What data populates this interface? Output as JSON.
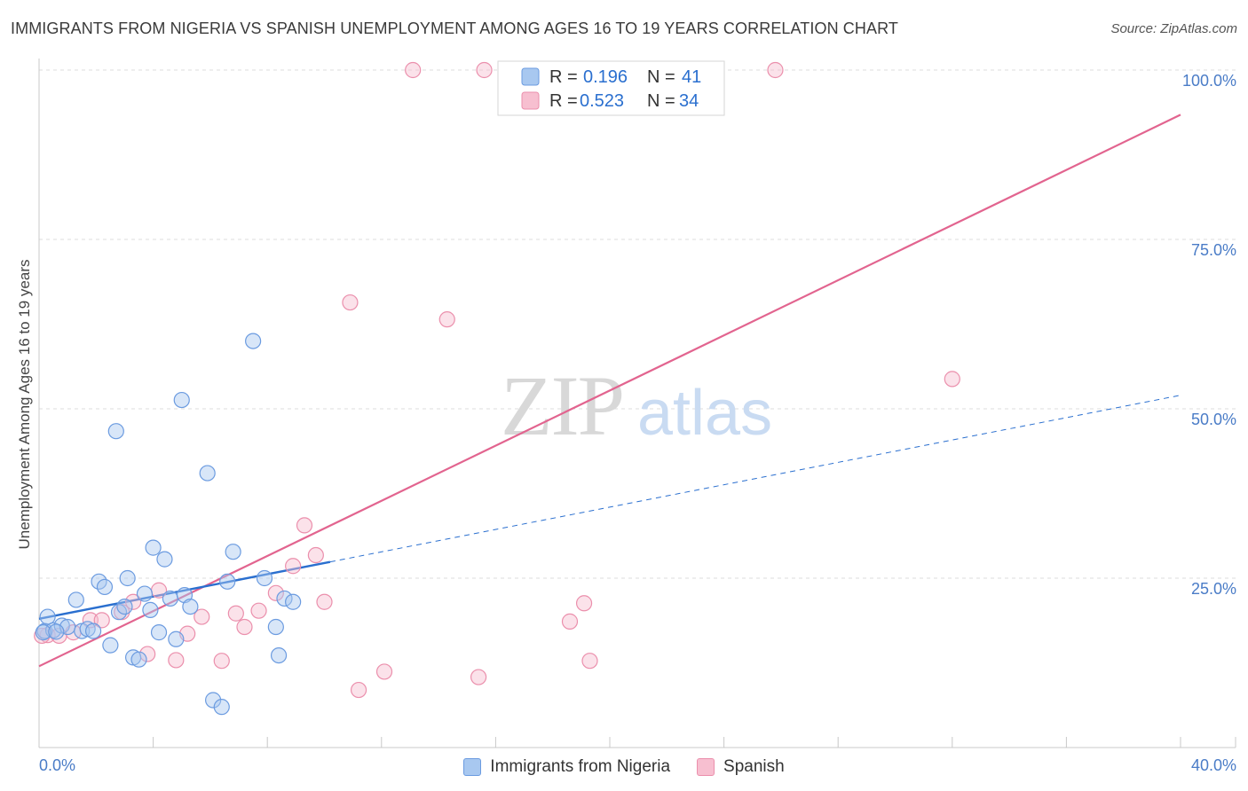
{
  "chart_data": {
    "type": "scatter",
    "title": "IMMIGRANTS FROM NIGERIA VS SPANISH UNEMPLOYMENT AMONG AGES 16 TO 19 YEARS CORRELATION CHART",
    "source": "Source: ZipAtlas.com",
    "xlabel": "",
    "ylabel": "Unemployment Among Ages 16 to 19 years",
    "xlim": [
      0,
      40
    ],
    "ylim": [
      0,
      100
    ],
    "x_tick_labels": [
      "0.0%",
      "40.0%"
    ],
    "y_tick_labels": [
      {
        "value": 25,
        "label": "25.0%"
      },
      {
        "value": 50,
        "label": "50.0%"
      },
      {
        "value": 75,
        "label": "75.0%"
      },
      {
        "value": 100,
        "label": "100.0%"
      }
    ],
    "watermark": {
      "zip": "ZIP",
      "atlas": "atlas"
    },
    "colors": {
      "blue_fill": "#a8c8f0",
      "blue_stroke": "#6b9be0",
      "blue_line": "#2a6fcf",
      "pink_fill": "#f7bfd0",
      "pink_stroke": "#eb8fac",
      "pink_line": "#e2648f",
      "accent_text": "#2a6fcf"
    },
    "stats_legend": [
      {
        "r_label": "R =",
        "r_value": "0.196",
        "n_label": "N =",
        "n_value": "41"
      },
      {
        "r_label": "R =",
        "r_value": "0.523",
        "n_label": "N =",
        "n_value": "34"
      }
    ],
    "series": [
      {
        "name": "Immigrants from Nigeria",
        "color": "blue",
        "trend": {
          "x0": 0,
          "y0": 19.0,
          "x1": 10.2,
          "y1": 27.4,
          "dashed_to_x": 40,
          "dashed_to_y": 52.0
        },
        "points": [
          {
            "x": 0.2,
            "y": 17.2
          },
          {
            "x": 0.3,
            "y": 19.3
          },
          {
            "x": 0.5,
            "y": 17.3
          },
          {
            "x": 0.8,
            "y": 18.0
          },
          {
            "x": 1.0,
            "y": 17.8
          },
          {
            "x": 1.3,
            "y": 21.8
          },
          {
            "x": 1.5,
            "y": 17.2
          },
          {
            "x": 1.7,
            "y": 17.5
          },
          {
            "x": 1.9,
            "y": 17.2
          },
          {
            "x": 2.1,
            "y": 24.5
          },
          {
            "x": 2.3,
            "y": 23.7
          },
          {
            "x": 2.5,
            "y": 15.1
          },
          {
            "x": 2.7,
            "y": 46.7
          },
          {
            "x": 2.8,
            "y": 20.0
          },
          {
            "x": 3.0,
            "y": 20.8
          },
          {
            "x": 3.1,
            "y": 25.0
          },
          {
            "x": 3.3,
            "y": 13.3
          },
          {
            "x": 3.5,
            "y": 13.0
          },
          {
            "x": 3.7,
            "y": 22.7
          },
          {
            "x": 3.9,
            "y": 20.3
          },
          {
            "x": 4.0,
            "y": 29.5
          },
          {
            "x": 4.2,
            "y": 17.0
          },
          {
            "x": 4.4,
            "y": 27.8
          },
          {
            "x": 4.6,
            "y": 22.0
          },
          {
            "x": 4.8,
            "y": 16.0
          },
          {
            "x": 5.0,
            "y": 51.3
          },
          {
            "x": 5.1,
            "y": 22.5
          },
          {
            "x": 5.3,
            "y": 20.8
          },
          {
            "x": 5.9,
            "y": 40.5
          },
          {
            "x": 6.1,
            "y": 7.0
          },
          {
            "x": 6.4,
            "y": 6.0
          },
          {
            "x": 6.6,
            "y": 24.5
          },
          {
            "x": 6.8,
            "y": 28.9
          },
          {
            "x": 7.5,
            "y": 60.0
          },
          {
            "x": 7.9,
            "y": 25.0
          },
          {
            "x": 8.3,
            "y": 17.8
          },
          {
            "x": 8.4,
            "y": 13.6
          },
          {
            "x": 8.6,
            "y": 22.0
          },
          {
            "x": 8.9,
            "y": 21.5
          },
          {
            "x": 0.15,
            "y": 17.0
          },
          {
            "x": 0.6,
            "y": 17.1
          }
        ]
      },
      {
        "name": "Spanish",
        "color": "pink",
        "trend": {
          "x0": 0,
          "y0": 12.0,
          "x1": 40,
          "y1": 93.4
        },
        "points": [
          {
            "x": 0.3,
            "y": 16.6
          },
          {
            "x": 0.7,
            "y": 16.5
          },
          {
            "x": 1.2,
            "y": 17.0
          },
          {
            "x": 1.8,
            "y": 18.8
          },
          {
            "x": 2.2,
            "y": 18.8
          },
          {
            "x": 2.9,
            "y": 20.0
          },
          {
            "x": 3.3,
            "y": 21.5
          },
          {
            "x": 3.8,
            "y": 13.8
          },
          {
            "x": 4.2,
            "y": 23.2
          },
          {
            "x": 4.8,
            "y": 12.9
          },
          {
            "x": 5.2,
            "y": 16.8
          },
          {
            "x": 5.7,
            "y": 19.3
          },
          {
            "x": 6.4,
            "y": 12.8
          },
          {
            "x": 6.9,
            "y": 19.8
          },
          {
            "x": 7.2,
            "y": 17.8
          },
          {
            "x": 7.7,
            "y": 20.2
          },
          {
            "x": 8.3,
            "y": 22.8
          },
          {
            "x": 8.9,
            "y": 26.8
          },
          {
            "x": 9.3,
            "y": 32.8
          },
          {
            "x": 9.7,
            "y": 28.4
          },
          {
            "x": 10.0,
            "y": 21.5
          },
          {
            "x": 10.9,
            "y": 65.7
          },
          {
            "x": 11.2,
            "y": 8.5
          },
          {
            "x": 12.1,
            "y": 11.2
          },
          {
            "x": 13.1,
            "y": 100.0
          },
          {
            "x": 14.3,
            "y": 63.2
          },
          {
            "x": 15.4,
            "y": 10.4
          },
          {
            "x": 15.6,
            "y": 100.0
          },
          {
            "x": 18.6,
            "y": 18.6
          },
          {
            "x": 19.1,
            "y": 21.3
          },
          {
            "x": 19.3,
            "y": 12.8
          },
          {
            "x": 25.8,
            "y": 100.0
          },
          {
            "x": 32.0,
            "y": 54.4
          },
          {
            "x": 0.1,
            "y": 16.5
          }
        ]
      }
    ]
  }
}
